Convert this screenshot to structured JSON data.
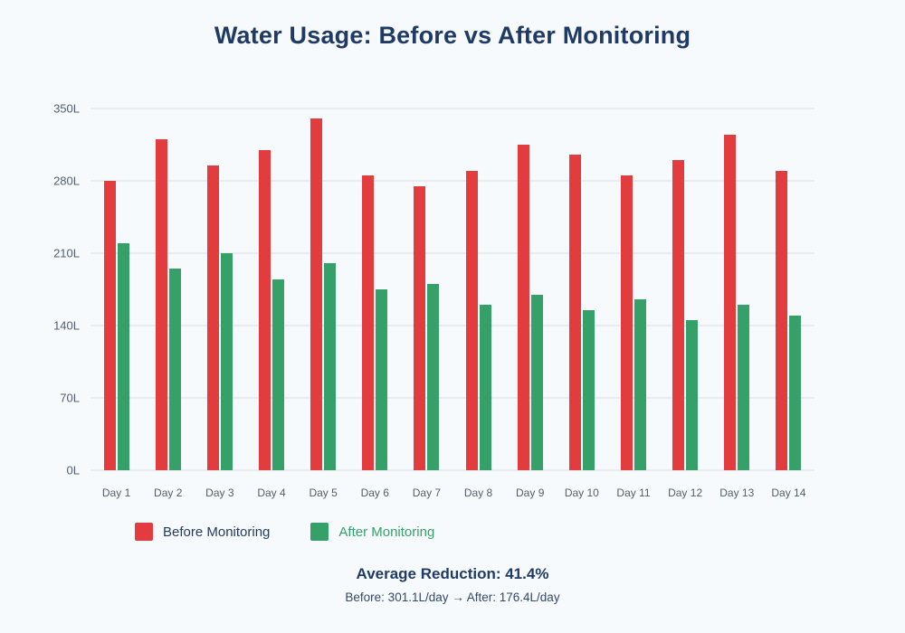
{
  "title": "Water Usage: Before vs After Monitoring",
  "colors": {
    "background": "#f7fafc",
    "title_text": "#1f3a64",
    "before": "#e23c3f",
    "after": "#35a169",
    "grid": "#e8ecf1",
    "axis_text": "#535e6c",
    "legend_before_text": "#243a5e",
    "footer_sub_text": "#33486b"
  },
  "legend": {
    "before_label": "Before Monitoring",
    "after_label": "After Monitoring"
  },
  "footer": {
    "summary": "Average Reduction: 41.4%",
    "detail": "Before: 301.1L/day → After: 176.4L/day"
  },
  "chart_data": {
    "type": "bar",
    "title": "Water Usage: Before vs After Monitoring",
    "categories": [
      "Day 1",
      "Day 2",
      "Day 3",
      "Day 4",
      "Day 5",
      "Day 6",
      "Day 7",
      "Day 8",
      "Day 9",
      "Day 10",
      "Day 11",
      "Day 12",
      "Day 13",
      "Day 14"
    ],
    "series": [
      {
        "name": "Before Monitoring",
        "color": "#e23c3f",
        "values": [
          280,
          320,
          295,
          310,
          340,
          285,
          275,
          290,
          315,
          305,
          285,
          300,
          325,
          290
        ]
      },
      {
        "name": "After Monitoring",
        "color": "#35a169",
        "values": [
          220,
          195,
          210,
          185,
          200,
          175,
          180,
          160,
          170,
          155,
          165,
          145,
          160,
          150
        ]
      }
    ],
    "y_unit": "L",
    "y_ticks": [
      350,
      280,
      210,
      140,
      70,
      0
    ],
    "ylim": [
      0,
      350
    ],
    "grid": true,
    "legend_position": "bottom",
    "stats": {
      "average_before_l_per_day": 301.1,
      "average_after_l_per_day": 176.4,
      "average_reduction_pct": 41.4
    }
  }
}
